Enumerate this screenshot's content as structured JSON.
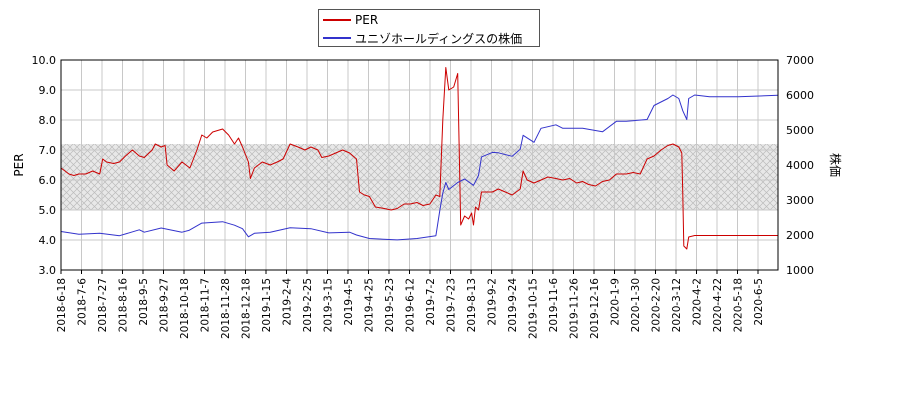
{
  "legend": [
    {
      "label": "PER",
      "color": "#cc0000"
    },
    {
      "label": "ユニゾホールディングスの株価",
      "color": "#3333cc"
    }
  ],
  "chart_data": {
    "type": "line",
    "xlabel": "",
    "ylabel_left": "PER",
    "ylabel_right": "株価",
    "ylim_left": [
      3.0,
      10.0
    ],
    "ylim_right": [
      1000,
      7000
    ],
    "yticks_left": [
      "3.0",
      "4.0",
      "5.0",
      "6.0",
      "7.0",
      "8.0",
      "9.0",
      "10.0"
    ],
    "yticks_right": [
      "1000",
      "2000",
      "3000",
      "4000",
      "5000",
      "6000",
      "7000"
    ],
    "shaded_band_left": [
      5.0,
      7.2
    ],
    "grid": true,
    "legend_position": "top-center",
    "x_range": [
      "2018-06-18",
      "2020-06-10"
    ],
    "x_tick_labels": [
      "2018-6-18",
      "2018-7-6",
      "2018-7-27",
      "2018-8-16",
      "2018-9-5",
      "2018-9-27",
      "2018-10-18",
      "2018-11-7",
      "2018-11-28",
      "2018-12-18",
      "2019-1-15",
      "2019-2-4",
      "2019-2-25",
      "2019-3-15",
      "2019-4-5",
      "2019-4-25",
      "2019-5-23",
      "2019-6-12",
      "2019-7-2",
      "2019-7-23",
      "2019-8-13",
      "2019-9-2",
      "2019-9-24",
      "2019-10-15",
      "2019-11-6",
      "2019-11-26",
      "2019-12-16",
      "2020-1-9",
      "2020-1-30",
      "2020-2-20",
      "2020-3-12",
      "2020-4-2",
      "2020-4-22",
      "2020-5-18",
      "2020-6-5"
    ],
    "series": [
      {
        "name": "PER",
        "axis": "left",
        "color": "#cc0000",
        "points": [
          [
            "2018-06-18",
            6.4
          ],
          [
            "2018-06-22",
            6.3
          ],
          [
            "2018-06-26",
            6.2
          ],
          [
            "2018-07-01",
            6.15
          ],
          [
            "2018-07-06",
            6.2
          ],
          [
            "2018-07-13",
            6.2
          ],
          [
            "2018-07-20",
            6.3
          ],
          [
            "2018-07-27",
            6.2
          ],
          [
            "2018-07-30",
            6.7
          ],
          [
            "2018-08-03",
            6.6
          ],
          [
            "2018-08-10",
            6.55
          ],
          [
            "2018-08-16",
            6.6
          ],
          [
            "2018-08-22",
            6.8
          ],
          [
            "2018-08-29",
            7.0
          ],
          [
            "2018-09-05",
            6.8
          ],
          [
            "2018-09-10",
            6.75
          ],
          [
            "2018-09-18",
            7.0
          ],
          [
            "2018-09-21",
            7.2
          ],
          [
            "2018-09-27",
            7.1
          ],
          [
            "2018-10-01",
            7.15
          ],
          [
            "2018-10-03",
            6.5
          ],
          [
            "2018-10-10",
            6.3
          ],
          [
            "2018-10-18",
            6.6
          ],
          [
            "2018-10-22",
            6.5
          ],
          [
            "2018-10-26",
            6.4
          ],
          [
            "2018-11-02",
            7.0
          ],
          [
            "2018-11-07",
            7.5
          ],
          [
            "2018-11-12",
            7.4
          ],
          [
            "2018-11-18",
            7.6
          ],
          [
            "2018-11-28",
            7.7
          ],
          [
            "2018-12-04",
            7.5
          ],
          [
            "2018-12-10",
            7.2
          ],
          [
            "2018-12-14",
            7.4
          ],
          [
            "2018-12-18",
            7.1
          ],
          [
            "2018-12-24",
            6.6
          ],
          [
            "2018-12-26",
            6.05
          ],
          [
            "2018-12-30",
            6.4
          ],
          [
            "2019-01-07",
            6.6
          ],
          [
            "2019-01-15",
            6.5
          ],
          [
            "2019-01-22",
            6.6
          ],
          [
            "2019-01-28",
            6.7
          ],
          [
            "2019-02-04",
            7.2
          ],
          [
            "2019-02-12",
            7.1
          ],
          [
            "2019-02-19",
            7.0
          ],
          [
            "2019-02-25",
            7.1
          ],
          [
            "2019-03-04",
            7.0
          ],
          [
            "2019-03-08",
            6.75
          ],
          [
            "2019-03-15",
            6.8
          ],
          [
            "2019-03-22",
            6.9
          ],
          [
            "2019-03-29",
            7.0
          ],
          [
            "2019-04-05",
            6.9
          ],
          [
            "2019-04-12",
            6.7
          ],
          [
            "2019-04-15",
            5.6
          ],
          [
            "2019-04-20",
            5.5
          ],
          [
            "2019-04-25",
            5.45
          ],
          [
            "2019-05-01",
            5.1
          ],
          [
            "2019-05-10",
            5.05
          ],
          [
            "2019-05-17",
            5.0
          ],
          [
            "2019-05-23",
            5.05
          ],
          [
            "2019-05-30",
            5.2
          ],
          [
            "2019-06-05",
            5.2
          ],
          [
            "2019-06-12",
            5.25
          ],
          [
            "2019-06-18",
            5.15
          ],
          [
            "2019-06-25",
            5.2
          ],
          [
            "2019-07-01",
            5.5
          ],
          [
            "2019-07-05",
            5.45
          ],
          [
            "2019-07-08",
            8.0
          ],
          [
            "2019-07-11",
            9.75
          ],
          [
            "2019-07-14",
            9.0
          ],
          [
            "2019-07-19",
            9.1
          ],
          [
            "2019-07-23",
            9.55
          ],
          [
            "2019-07-26",
            4.5
          ],
          [
            "2019-07-30",
            4.8
          ],
          [
            "2019-08-03",
            4.7
          ],
          [
            "2019-08-06",
            4.9
          ],
          [
            "2019-08-08",
            4.5
          ],
          [
            "2019-08-10",
            5.1
          ],
          [
            "2019-08-13",
            5.0
          ],
          [
            "2019-08-16",
            5.6
          ],
          [
            "2019-08-22",
            5.6
          ],
          [
            "2019-08-27",
            5.6
          ],
          [
            "2019-09-02",
            5.7
          ],
          [
            "2019-09-09",
            5.6
          ],
          [
            "2019-09-16",
            5.5
          ],
          [
            "2019-09-24",
            5.7
          ],
          [
            "2019-09-27",
            6.3
          ],
          [
            "2019-10-01",
            6.0
          ],
          [
            "2019-10-08",
            5.9
          ],
          [
            "2019-10-15",
            6.0
          ],
          [
            "2019-10-22",
            6.1
          ],
          [
            "2019-10-30",
            6.05
          ],
          [
            "2019-11-06",
            6.0
          ],
          [
            "2019-11-13",
            6.05
          ],
          [
            "2019-11-20",
            5.9
          ],
          [
            "2019-11-26",
            5.95
          ],
          [
            "2019-12-02",
            5.85
          ],
          [
            "2019-12-09",
            5.8
          ],
          [
            "2019-12-16",
            5.95
          ],
          [
            "2019-12-23",
            6.0
          ],
          [
            "2019-12-30",
            6.2
          ],
          [
            "2020-01-09",
            6.2
          ],
          [
            "2020-01-16",
            6.25
          ],
          [
            "2020-01-23",
            6.2
          ],
          [
            "2020-01-30",
            6.7
          ],
          [
            "2020-02-06",
            6.8
          ],
          [
            "2020-02-13",
            7.0
          ],
          [
            "2020-02-20",
            7.15
          ],
          [
            "2020-02-25",
            7.2
          ],
          [
            "2020-03-02",
            7.1
          ],
          [
            "2020-03-05",
            6.9
          ],
          [
            "2020-03-06",
            5.5
          ],
          [
            "2020-03-07",
            3.8
          ],
          [
            "2020-03-10",
            3.7
          ],
          [
            "2020-03-12",
            4.1
          ],
          [
            "2020-03-18",
            4.15
          ],
          [
            "2020-04-02",
            4.15
          ],
          [
            "2020-05-01",
            4.15
          ],
          [
            "2020-06-10",
            4.15
          ]
        ]
      },
      {
        "name": "ユニゾホールディングスの株価",
        "axis": "right",
        "color": "#3333cc",
        "points": [
          [
            "2018-06-18",
            2100
          ],
          [
            "2018-07-06",
            2020
          ],
          [
            "2018-07-27",
            2050
          ],
          [
            "2018-08-16",
            1980
          ],
          [
            "2018-09-05",
            2150
          ],
          [
            "2018-09-10",
            2080
          ],
          [
            "2018-09-27",
            2200
          ],
          [
            "2018-10-18",
            2080
          ],
          [
            "2018-10-25",
            2130
          ],
          [
            "2018-11-07",
            2340
          ],
          [
            "2018-11-28",
            2380
          ],
          [
            "2018-12-10",
            2280
          ],
          [
            "2018-12-18",
            2180
          ],
          [
            "2018-12-24",
            1950
          ],
          [
            "2018-12-30",
            2050
          ],
          [
            "2019-01-15",
            2080
          ],
          [
            "2019-02-04",
            2210
          ],
          [
            "2019-02-25",
            2180
          ],
          [
            "2019-03-15",
            2060
          ],
          [
            "2019-04-05",
            2080
          ],
          [
            "2019-04-12",
            2000
          ],
          [
            "2019-04-25",
            1900
          ],
          [
            "2019-05-23",
            1860
          ],
          [
            "2019-06-12",
            1900
          ],
          [
            "2019-07-01",
            1980
          ],
          [
            "2019-07-05",
            2700
          ],
          [
            "2019-07-08",
            3200
          ],
          [
            "2019-07-11",
            3500
          ],
          [
            "2019-07-14",
            3300
          ],
          [
            "2019-07-23",
            3500
          ],
          [
            "2019-07-30",
            3600
          ],
          [
            "2019-08-08",
            3420
          ],
          [
            "2019-08-13",
            3700
          ],
          [
            "2019-08-16",
            4230
          ],
          [
            "2019-08-27",
            4360
          ],
          [
            "2019-09-02",
            4350
          ],
          [
            "2019-09-16",
            4250
          ],
          [
            "2019-09-24",
            4450
          ],
          [
            "2019-09-27",
            4850
          ],
          [
            "2019-10-08",
            4650
          ],
          [
            "2019-10-15",
            5050
          ],
          [
            "2019-10-30",
            5150
          ],
          [
            "2019-11-06",
            5050
          ],
          [
            "2019-11-26",
            5050
          ],
          [
            "2019-12-16",
            4950
          ],
          [
            "2019-12-30",
            5250
          ],
          [
            "2020-01-09",
            5250
          ],
          [
            "2020-01-30",
            5300
          ],
          [
            "2020-02-06",
            5700
          ],
          [
            "2020-02-20",
            5900
          ],
          [
            "2020-02-25",
            6000
          ],
          [
            "2020-03-02",
            5900
          ],
          [
            "2020-03-06",
            5550
          ],
          [
            "2020-03-10",
            5300
          ],
          [
            "2020-03-12",
            5900
          ],
          [
            "2020-03-18",
            6000
          ],
          [
            "2020-04-02",
            5950
          ],
          [
            "2020-05-01",
            5950
          ],
          [
            "2020-06-10",
            5990
          ]
        ]
      }
    ]
  }
}
